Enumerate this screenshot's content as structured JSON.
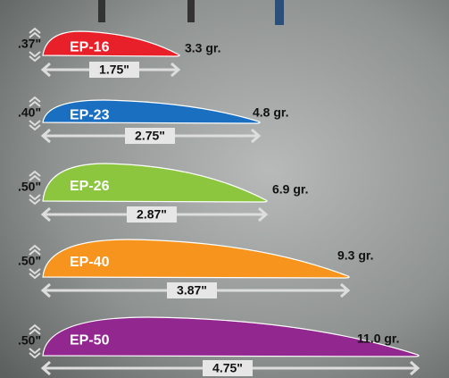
{
  "vanes": [
    {
      "height": ".37\"",
      "name": "EP-16",
      "weight": "3.3 gr.",
      "length": "1.75\""
    },
    {
      "height": ".40\"",
      "name": "EP-23",
      "weight": "4.8 gr.",
      "length": "2.75\""
    },
    {
      "height": ".50\"",
      "name": "EP-26",
      "weight": "6.9 gr.",
      "length": "2.87\""
    },
    {
      "height": ".50\"",
      "name": "EP-40",
      "weight": "9.3 gr.",
      "length": "3.87\""
    },
    {
      "height": ".50\"",
      "name": "EP-50",
      "weight": "11.0 gr.",
      "length": "4.75\""
    }
  ]
}
